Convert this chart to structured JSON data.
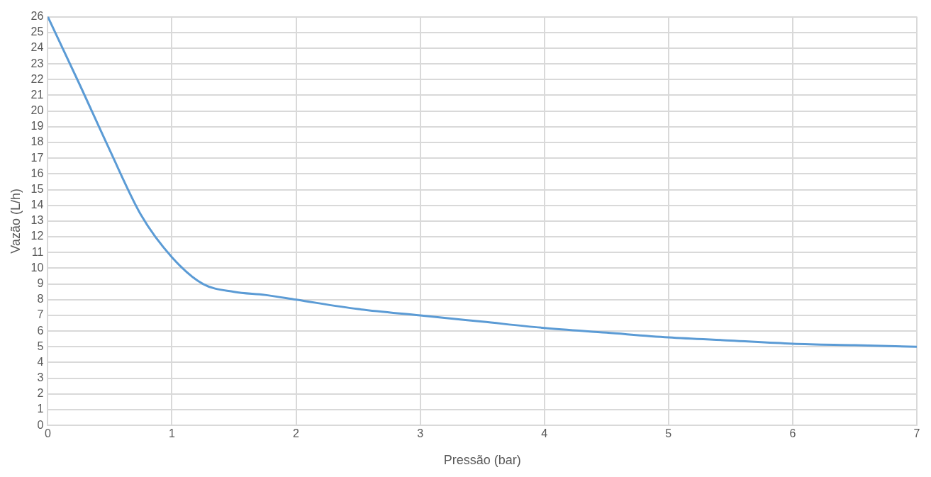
{
  "chart_data": {
    "type": "line",
    "xlabel": "Pressão (bar)",
    "ylabel": "Vazão (L/h)",
    "series": [
      {
        "color": "#5b9bd5",
        "x": [
          0,
          0.25,
          0.5,
          0.75,
          1,
          1.25,
          1.5,
          1.75,
          2,
          2.5,
          3,
          3.5,
          4,
          4.5,
          5,
          5.5,
          6,
          6.5,
          7
        ],
        "values": [
          26,
          21.8,
          17.5,
          13.4,
          10.7,
          9.0,
          8.5,
          8.3,
          8.0,
          7.4,
          7.0,
          6.6,
          6.2,
          5.9,
          5.6,
          5.4,
          5.2,
          5.1,
          5.0
        ]
      }
    ],
    "xlim": [
      0,
      7
    ],
    "xticks": [
      0,
      1,
      2,
      3,
      4,
      5,
      6,
      7
    ],
    "ylim": [
      0,
      26
    ],
    "yticks": [
      0,
      1,
      2,
      3,
      4,
      5,
      6,
      7,
      8,
      9,
      10,
      11,
      12,
      13,
      14,
      15,
      16,
      17,
      18,
      19,
      20,
      21,
      22,
      23,
      24,
      25,
      26
    ],
    "grid": true,
    "legend": false,
    "marker": "none",
    "line_style": "solid"
  }
}
